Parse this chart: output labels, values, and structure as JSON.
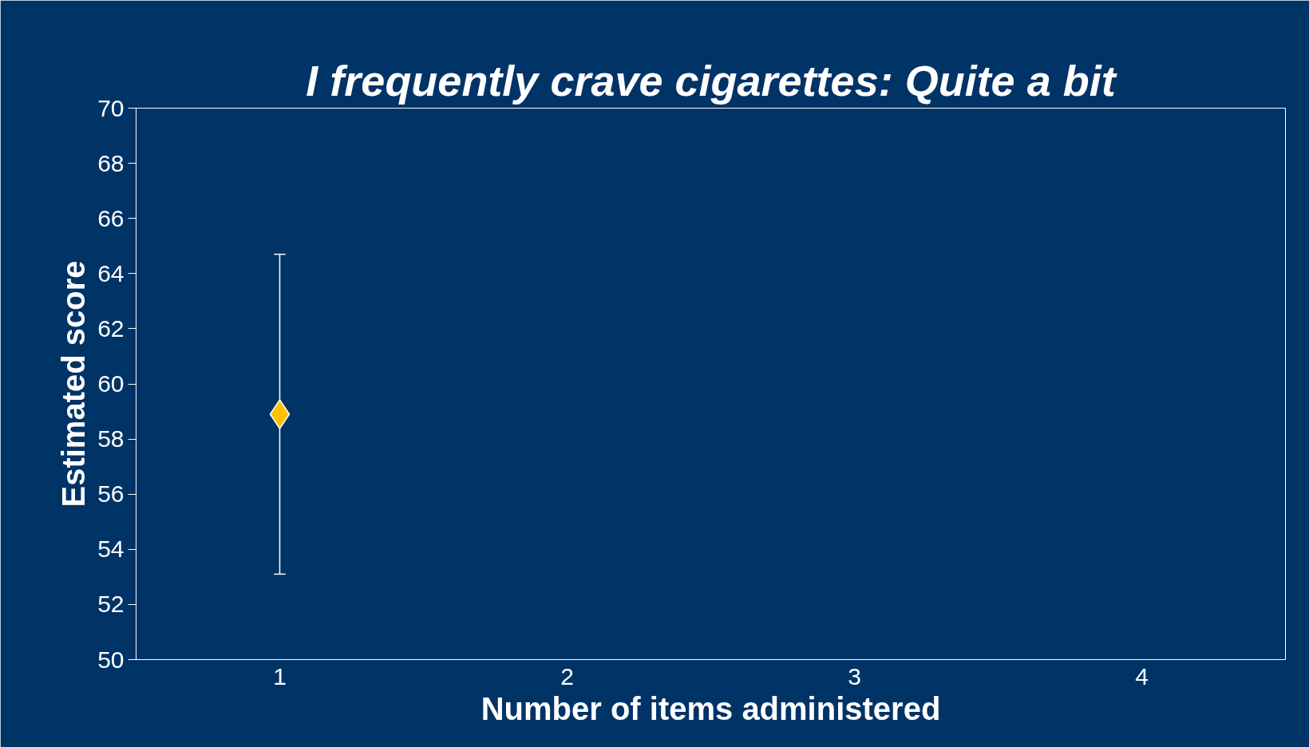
{
  "chart_data": {
    "type": "scatter",
    "title": "I frequently crave cigarettes: Quite a bit",
    "xlabel": "Number of items administered",
    "ylabel": "Estimated score",
    "categories": [
      "1",
      "2",
      "3",
      "4"
    ],
    "series": [
      {
        "color": "#ffc000",
        "values": [
          58.9,
          null,
          null,
          null
        ],
        "errors": [
          [
            53.1,
            64.7
          ],
          null,
          null,
          null
        ]
      }
    ],
    "ylim": [
      50,
      70
    ],
    "yticks": [
      50,
      52,
      54,
      56,
      58,
      60,
      62,
      64,
      66,
      68,
      70
    ],
    "marker": "diamond",
    "grid": false
  }
}
